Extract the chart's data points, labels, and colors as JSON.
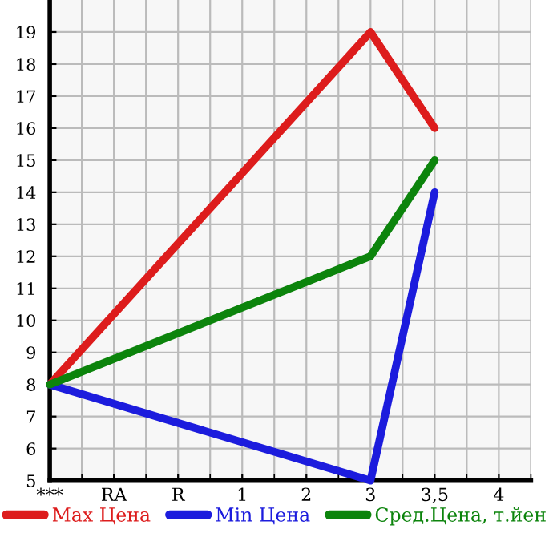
{
  "chart_data": {
    "type": "line",
    "categories": [
      "***",
      "RA",
      "R",
      "1",
      "2",
      "3",
      "3,5",
      "4"
    ],
    "series": [
      {
        "name": "Max Цена",
        "color": "#dd1c1c",
        "values": [
          8,
          null,
          null,
          null,
          null,
          19,
          16,
          null
        ]
      },
      {
        "name": "Min Цена",
        "color": "#1c1cdd",
        "values": [
          8,
          null,
          null,
          null,
          null,
          5,
          14,
          null
        ]
      },
      {
        "name": "Сред.Цена, т.йен",
        "color": "#0c840c",
        "values": [
          8,
          null,
          null,
          null,
          null,
          12,
          15,
          null
        ]
      }
    ],
    "ylim": [
      5,
      20
    ],
    "yticks": [
      5,
      6,
      7,
      8,
      9,
      10,
      11,
      12,
      13,
      14,
      15,
      16,
      17,
      18,
      19
    ],
    "grid": true,
    "legend": "bottom",
    "marker": "none",
    "line_style": "solid"
  }
}
